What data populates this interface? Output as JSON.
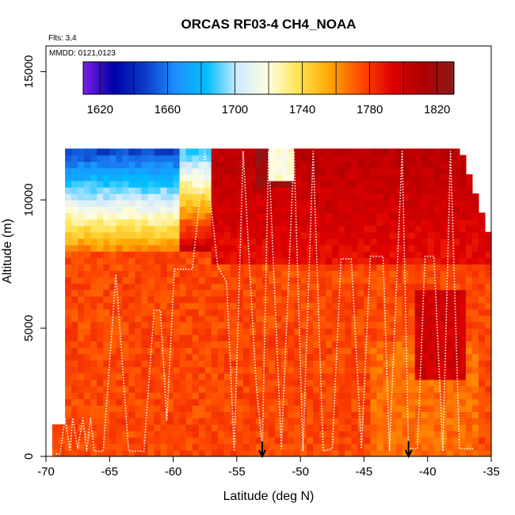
{
  "chart_data": {
    "type": "heatmap",
    "title": "ORCAS RF03-4 CH4_NOAA",
    "annotations": {
      "flights": "Flts: 3,4",
      "dates": "MMDD: 0121,0123"
    },
    "xlabel": "Latitude (deg N)",
    "ylabel": "Altitude (m)",
    "xlim": [
      -70,
      -35
    ],
    "ylim": [
      0,
      16000
    ],
    "x_ticks": [
      -70,
      -65,
      -60,
      -55,
      -50,
      -45,
      -40,
      -35
    ],
    "y_ticks": [
      0,
      5000,
      10000,
      15000
    ],
    "colorbar": {
      "min": 1610,
      "max": 1830,
      "ticks": [
        1620,
        1660,
        1700,
        1740,
        1780,
        1820
      ],
      "colors": [
        "#7b1fe6",
        "#0000a8",
        "#0a3cc8",
        "#1e90ff",
        "#00bfff",
        "#cfeaff",
        "#fffde0",
        "#ffe24a",
        "#ffa500",
        "#ff4a00",
        "#e00000",
        "#b00000",
        "#8b1a1a"
      ]
    },
    "markers": {
      "latitudes": [
        -53,
        -41.5
      ],
      "symbol": "arrow-down"
    },
    "field_description": "CH4 mixing ratio (ppb); ~1775 below 7500 m, ~1800 red in upper troposphere north of -57, low values 1640-1720 above 8000 m south of -57",
    "flight_track": {
      "latitude": [
        -69.2,
        -68.9,
        -68.5,
        -68.1,
        -67.9,
        -67.5,
        -67.1,
        -66.8,
        -66.5,
        -66.2,
        -65.5,
        -64.5,
        -63.5,
        -62.3,
        -61.5,
        -61.0,
        -60.5,
        -59.9,
        -59.5,
        -58.5,
        -57.5,
        -56.5,
        -55.8,
        -55.2,
        -54.5,
        -53.5,
        -53.0,
        -52.5,
        -51.5,
        -50.5,
        -49.8,
        -49.0,
        -48.2,
        -47.5,
        -46.8,
        -46.0,
        -45.2,
        -44.5,
        -44.0,
        -43.5,
        -43.0,
        -42.0,
        -41.5,
        -40.8,
        -40.2,
        -39.5,
        -38.8,
        -38.2,
        -37.5,
        -36.8,
        -36.3
      ],
      "altitude": [
        100,
        100,
        1500,
        200,
        1500,
        300,
        1500,
        200,
        1500,
        200,
        200,
        7100,
        200,
        200,
        5700,
        5700,
        1400,
        7300,
        7300,
        7300,
        11900,
        7400,
        6800,
        200,
        11900,
        3000,
        300,
        11900,
        300,
        11900,
        200,
        11900,
        200,
        300,
        7700,
        7700,
        300,
        7800,
        7800,
        7800,
        200,
        11900,
        300,
        300,
        7800,
        7800,
        200,
        11900,
        300,
        300,
        300
      ]
    }
  }
}
